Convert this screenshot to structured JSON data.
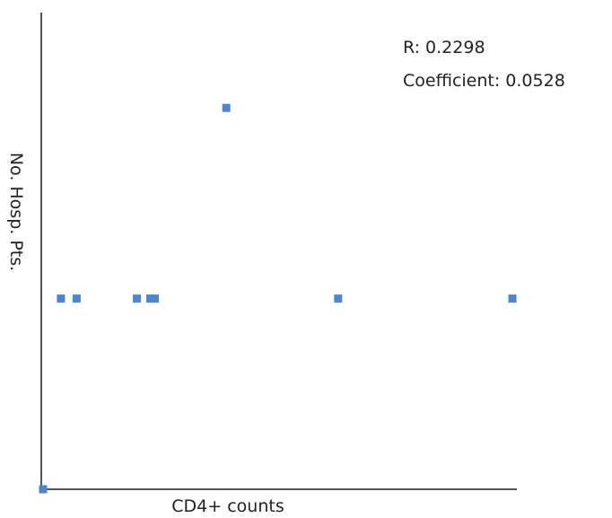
{
  "chart_data": {
    "type": "scatter",
    "title": "",
    "xlabel": "CD4+ counts",
    "ylabel": "No. Hosp. Pts.",
    "annotations": [
      "R: 0.2298",
      "Coefficient: 0.0528"
    ],
    "xlim": [
      0,
      1060
    ],
    "ylim": [
      0,
      5
    ],
    "grid": false,
    "legend": "none",
    "marker_color": "#4a86d4",
    "axis_color": "#1a1a1a",
    "points": [
      {
        "x": 0,
        "y": 0
      },
      {
        "x": 40,
        "y": 2
      },
      {
        "x": 75,
        "y": 2
      },
      {
        "x": 210,
        "y": 2
      },
      {
        "x": 240,
        "y": 2
      },
      {
        "x": 250,
        "y": 2
      },
      {
        "x": 410,
        "y": 4
      },
      {
        "x": 660,
        "y": 2
      },
      {
        "x": 1050,
        "y": 2
      }
    ]
  }
}
